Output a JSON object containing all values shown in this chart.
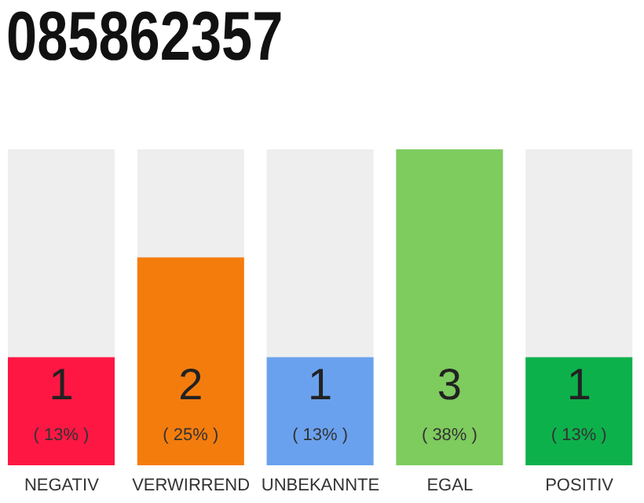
{
  "chart_data": {
    "type": "bar",
    "title": "085862357",
    "categories": [
      "NEGATIV",
      "VERWIRREND",
      "UNBEKANNTE",
      "EGAL",
      "POSITIV"
    ],
    "values": [
      13,
      25,
      13,
      38,
      13
    ],
    "colors": [
      "#ff1744",
      "#f47c0d",
      "#6aa1ee",
      "#7ecb5e",
      "#0db14b"
    ],
    "value_labels": [
      "( 13% )",
      "( 25% )",
      "( 13% )",
      "( 38% )",
      "( 13% )"
    ],
    "annotations": [
      "1",
      "2",
      "1",
      "3",
      "1"
    ],
    "tick_labels": "x"
  }
}
